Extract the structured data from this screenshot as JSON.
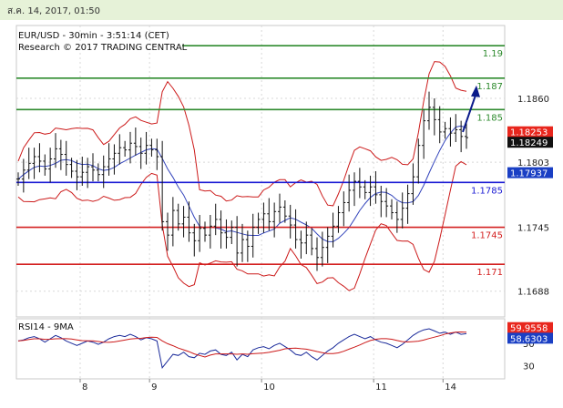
{
  "header": {
    "timestamp": "ส.ค. 14, 2017, 01:50"
  },
  "chart_data": {
    "type": "candlestick",
    "title": "EUR/USD - 30min - 3:51:14 (CET)",
    "subtitle": "Research © 2017 TRADING CENTRAL",
    "price_axis": {
      "ticks": [
        "1.1860",
        "1.1803",
        "1.1745",
        "1.1688"
      ],
      "tick_values": [
        1.186,
        1.1803,
        1.1745,
        1.1688
      ],
      "ylim": [
        1.1665,
        1.1925
      ]
    },
    "x_ticks": [
      "8",
      "9",
      "10",
      "11",
      "14"
    ],
    "levels": [
      {
        "label": "1.19",
        "value": 1.1907,
        "color": "#2e8b2e"
      },
      {
        "label": "1.187",
        "value": 1.1878,
        "color": "#2e8b2e"
      },
      {
        "label": "1.185",
        "value": 1.185,
        "color": "#2e8b2e"
      },
      {
        "label": "1.1785",
        "value": 1.1785,
        "color": "#1a1ad4"
      },
      {
        "label": "1.1745",
        "value": 1.1745,
        "color": "#d42020"
      },
      {
        "label": "1.171",
        "value": 1.1712,
        "color": "#d42020"
      }
    ],
    "price_badges": [
      {
        "label": "1.18253",
        "value": 1.18253,
        "bg": "#e8261d"
      },
      {
        "label": "1.18249",
        "value": 1.18249,
        "bg": "#111111"
      },
      {
        "label": "1.17937",
        "value": 1.17937,
        "bg": "#1a3fc4"
      }
    ],
    "close_series": [
      1.1788,
      1.1796,
      1.1802,
      1.1808,
      1.1804,
      1.1797,
      1.1806,
      1.1815,
      1.181,
      1.1801,
      1.1795,
      1.179,
      1.1794,
      1.1799,
      1.1796,
      1.1792,
      1.1799,
      1.1806,
      1.1811,
      1.1816,
      1.1814,
      1.182,
      1.1817,
      1.1811,
      1.1818,
      1.1814,
      1.1808,
      1.175,
      1.1738,
      1.176,
      1.1748,
      1.1754,
      1.174,
      1.1733,
      1.1744,
      1.1738,
      1.1746,
      1.1752,
      1.174,
      1.1736,
      1.1745,
      1.1722,
      1.1734,
      1.1728,
      1.1745,
      1.1752,
      1.1757,
      1.175,
      1.1759,
      1.1763,
      1.1755,
      1.1747,
      1.1734,
      1.1731,
      1.1738,
      1.1726,
      1.1718,
      1.1727,
      1.1737,
      1.1746,
      1.1758,
      1.1767,
      1.1778,
      1.1786,
      1.1781,
      1.1776,
      1.1781,
      1.1774,
      1.1768,
      1.1764,
      1.1758,
      1.1752,
      1.1762,
      1.1775,
      1.179,
      1.1818,
      1.184,
      1.1852,
      1.1841,
      1.183,
      1.1833,
      1.1829,
      1.1832,
      1.1826,
      1.1825
    ],
    "bands": {
      "color": "#cc1a1a"
    },
    "moving_average": {
      "color": "#3344bb"
    },
    "projection_arrow": {
      "from": 1.183,
      "to": 1.187,
      "color": "#0a1a8a"
    },
    "rsi": {
      "label": "RSI14 - 9MA",
      "ticks": [
        "50",
        "30"
      ],
      "tick_values": [
        50,
        30
      ],
      "ylim": [
        18,
        72
      ],
      "badges": [
        {
          "label": "59.9558",
          "value": 59.9558,
          "bg": "#e8261d"
        },
        {
          "label": "58.6303",
          "value": 58.6303,
          "bg": "#1a3fc4"
        }
      ],
      "values": [
        52,
        53,
        55,
        56,
        54,
        51,
        54,
        57,
        55,
        52,
        50,
        48,
        50,
        52,
        51,
        49,
        51,
        54,
        56,
        57,
        56,
        58,
        56,
        53,
        55,
        54,
        52,
        28,
        34,
        40,
        39,
        42,
        38,
        37,
        41,
        40,
        43,
        44,
        40,
        39,
        42,
        35,
        40,
        38,
        44,
        46,
        47,
        45,
        48,
        50,
        47,
        44,
        40,
        39,
        42,
        38,
        35,
        39,
        43,
        46,
        50,
        53,
        56,
        58,
        56,
        54,
        56,
        53,
        51,
        50,
        48,
        46,
        49,
        53,
        57,
        60,
        62,
        63,
        61,
        59,
        60,
        58,
        60,
        58,
        58.6
      ]
    }
  }
}
